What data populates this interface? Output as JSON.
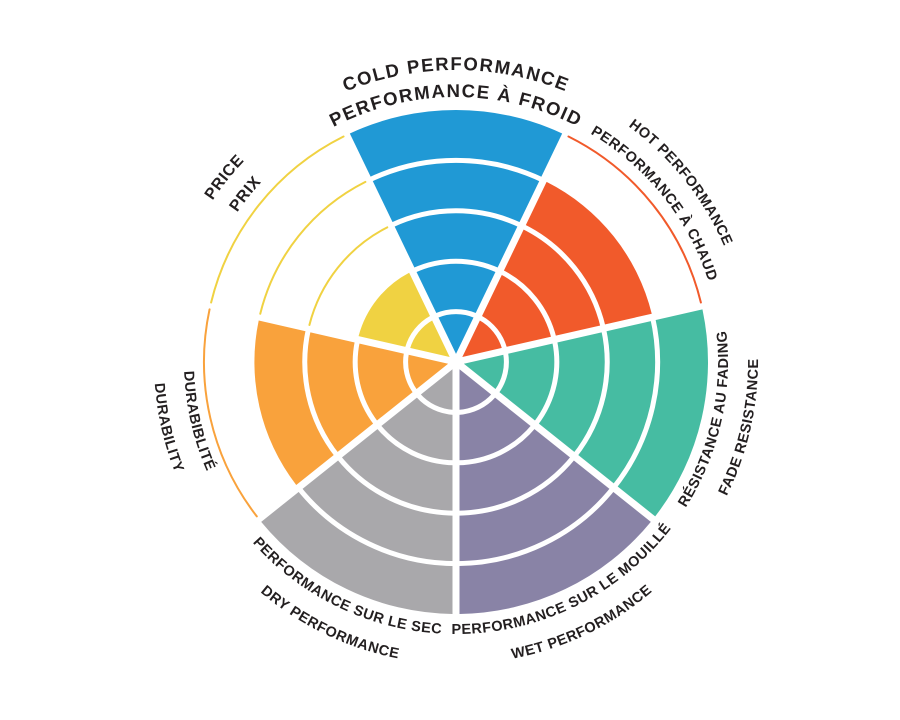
{
  "page": {
    "background_color": "#FFFFFF",
    "text_color": "#231F20"
  },
  "chart_data": {
    "type": "pie",
    "subtype": "radial-rating-wheel",
    "rings": 5,
    "max_rating": 5,
    "ring_separator_color": "#FFFFFF",
    "label_text_color": "#231F20",
    "sectors": [
      {
        "id": "cold-performance",
        "line1": "COLD PERFORMANCE",
        "line2": "PERFORMANCE À FROID",
        "value": 5,
        "color": "#2099D5"
      },
      {
        "id": "hot-performance",
        "line1": "HOT PERFORMANCE",
        "line2": "PERFORMANCE À CHAUD",
        "value": 4,
        "color": "#F15A2B"
      },
      {
        "id": "fade-resistance",
        "line1": "RÉSISTANCE AU FADING",
        "line2": "FADE RESISTANCE",
        "value": 5,
        "color": "#46BCA2"
      },
      {
        "id": "wet-performance",
        "line1": "PERFORMANCE SUR LE MOUILLÉ",
        "line2": "WET PERFORMANCE",
        "value": 5,
        "color": "#8983A6"
      },
      {
        "id": "dry-performance",
        "line1": "PERFORMANCE SUR LE SEC",
        "line2": "DRY PERFORMANCE",
        "value": 5,
        "color": "#A9A8AB"
      },
      {
        "id": "durability",
        "line1": "DURABIBLITÉ",
        "line2": "DURABILITY",
        "value": 4,
        "color": "#F9A23C"
      },
      {
        "id": "price",
        "line1": "PRICE",
        "line2": "PRIX",
        "value": 2,
        "color": "#F0D242"
      }
    ]
  }
}
